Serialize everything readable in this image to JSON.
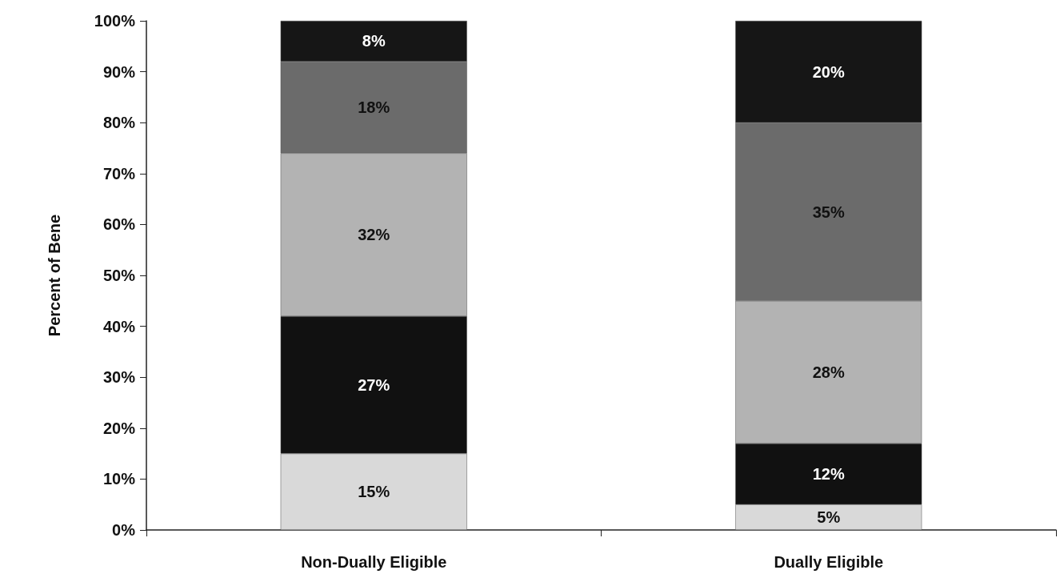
{
  "chart_data": {
    "type": "bar",
    "stacked": true,
    "ylabel": "Percent of Bene",
    "categories": [
      "Non-Dually Eligible",
      "Dually Eligible"
    ],
    "series": [
      {
        "color": "#d9d9d9",
        "values": [
          15,
          5
        ],
        "value_labels": [
          "15%",
          "5%"
        ]
      },
      {
        "color": "#111111",
        "values": [
          27,
          12
        ],
        "value_labels": [
          "27%",
          "12%"
        ]
      },
      {
        "color": "#b3b3b3",
        "values": [
          32,
          28
        ],
        "value_labels": [
          "32%",
          "28%"
        ]
      },
      {
        "color": "#6b6b6b",
        "values": [
          18,
          35
        ],
        "value_labels": [
          "18%",
          "35%"
        ]
      },
      {
        "color": "#161616",
        "values": [
          8,
          20
        ],
        "value_labels": [
          "8%",
          "20%"
        ]
      }
    ],
    "ylim": [
      0,
      100
    ],
    "yticks": [
      {
        "value": 0,
        "label": "0%"
      },
      {
        "value": 10,
        "label": "10%"
      },
      {
        "value": 20,
        "label": "20%"
      },
      {
        "value": 30,
        "label": "30%"
      },
      {
        "value": 40,
        "label": "40%"
      },
      {
        "value": 50,
        "label": "50%"
      },
      {
        "value": 60,
        "label": "60%"
      },
      {
        "value": 70,
        "label": "70%"
      },
      {
        "value": 80,
        "label": "80%"
      },
      {
        "value": 90,
        "label": "90%"
      },
      {
        "value": 100,
        "label": "100%"
      }
    ],
    "grid": false
  }
}
